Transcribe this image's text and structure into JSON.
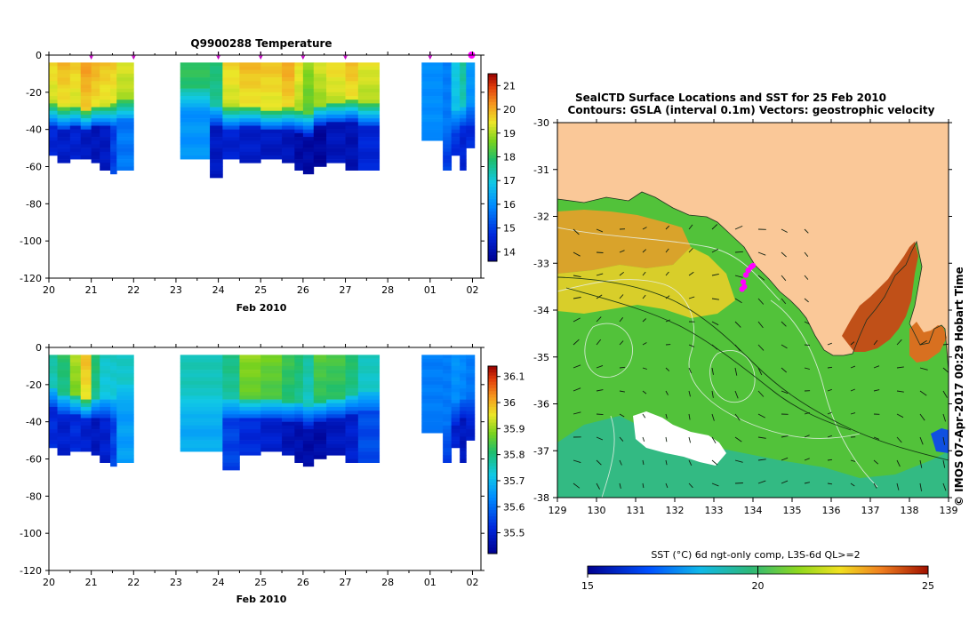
{
  "chart_data": [
    {
      "type": "heatmap",
      "id": "temperature_section",
      "title": "Q9900288  Temperature",
      "xlabel": "Feb 2010",
      "ylabel": "",
      "x_tick_labels": [
        "20",
        "21",
        "22",
        "23",
        "24",
        "25",
        "26",
        "27",
        "28",
        "01",
        "02"
      ],
      "ylim": [
        -120,
        0
      ],
      "y_ticks": [
        0,
        -20,
        -40,
        -60,
        -80,
        -100,
        -120
      ],
      "colorbar": {
        "min": 13.6,
        "max": 21.5,
        "ticks": [
          14,
          15,
          16,
          17,
          18,
          19,
          20,
          21
        ]
      },
      "profile_markers_day": [
        21.0,
        22.0,
        24.0,
        25.0,
        26.0,
        27.0,
        29.0,
        29.98
      ],
      "profiles": [
        {
          "x0": 20.0,
          "x1": 20.2,
          "surf": 19.7,
          "mix": 29,
          "deep": 14.6,
          "depth": 53
        },
        {
          "x0": 20.2,
          "x1": 20.5,
          "surf": 20.0,
          "mix": 31,
          "deep": 14.4,
          "depth": 57
        },
        {
          "x0": 20.5,
          "x1": 20.75,
          "surf": 19.8,
          "mix": 30,
          "deep": 14.5,
          "depth": 55
        },
        {
          "x0": 20.75,
          "x1": 21.0,
          "surf": 20.3,
          "mix": 32,
          "deep": 14.3,
          "depth": 55
        },
        {
          "x0": 21.0,
          "x1": 21.2,
          "surf": 20.1,
          "mix": 30,
          "deep": 14.2,
          "depth": 58
        },
        {
          "x0": 21.2,
          "x1": 21.45,
          "surf": 19.9,
          "mix": 30,
          "deep": 14.3,
          "depth": 61
        },
        {
          "x0": 21.45,
          "x1": 21.6,
          "surf": 19.8,
          "mix": 29,
          "deep": 15.0,
          "depth": 63
        },
        {
          "x0": 21.6,
          "x1": 22.0,
          "surf": 19.4,
          "mix": 26,
          "deep": 15.7,
          "depth": 61
        },
        {
          "x0": 23.1,
          "x1": 23.8,
          "surf": 18.1,
          "mix": 20,
          "deep": 16.1,
          "depth": 55
        },
        {
          "x0": 23.8,
          "x1": 24.1,
          "surf": 17.9,
          "mix": 30,
          "deep": 14.3,
          "depth": 66
        },
        {
          "x0": 24.1,
          "x1": 24.5,
          "surf": 19.7,
          "mix": 31,
          "deep": 14.5,
          "depth": 55
        },
        {
          "x0": 24.5,
          "x1": 25.0,
          "surf": 20.0,
          "mix": 30,
          "deep": 14.4,
          "depth": 57
        },
        {
          "x0": 25.0,
          "x1": 25.5,
          "surf": 19.9,
          "mix": 32,
          "deep": 14.3,
          "depth": 56
        },
        {
          "x0": 25.5,
          "x1": 25.8,
          "surf": 20.2,
          "mix": 31,
          "deep": 14.2,
          "depth": 58
        },
        {
          "x0": 25.8,
          "x1": 26.0,
          "surf": 19.6,
          "mix": 33,
          "deep": 13.9,
          "depth": 62
        },
        {
          "x0": 26.0,
          "x1": 26.25,
          "surf": 18.9,
          "mix": 35,
          "deep": 13.9,
          "depth": 64
        },
        {
          "x0": 26.25,
          "x1": 26.55,
          "surf": 19.4,
          "mix": 30,
          "deep": 13.8,
          "depth": 60
        },
        {
          "x0": 26.55,
          "x1": 27.0,
          "surf": 19.7,
          "mix": 28,
          "deep": 14.2,
          "depth": 58
        },
        {
          "x0": 27.0,
          "x1": 27.3,
          "surf": 20.0,
          "mix": 27,
          "deep": 14.1,
          "depth": 61
        },
        {
          "x0": 27.3,
          "x1": 27.8,
          "surf": 19.5,
          "mix": 29,
          "deep": 14.6,
          "depth": 61
        },
        {
          "x0": 28.8,
          "x1": 29.3,
          "surf": 16.0,
          "mix": 40,
          "deep": 15.8,
          "depth": 45
        },
        {
          "x0": 29.3,
          "x1": 29.5,
          "surf": 15.8,
          "mix": 44,
          "deep": 15.0,
          "depth": 62
        },
        {
          "x0": 29.5,
          "x1": 29.7,
          "surf": 17.0,
          "mix": 33,
          "deep": 14.8,
          "depth": 54
        },
        {
          "x0": 29.7,
          "x1": 29.85,
          "surf": 17.6,
          "mix": 30,
          "deep": 14.6,
          "depth": 62
        },
        {
          "x0": 29.85,
          "x1": 30.05,
          "surf": 16.2,
          "mix": 30,
          "deep": 14.7,
          "depth": 50
        }
      ]
    },
    {
      "type": "heatmap",
      "id": "salinity_section",
      "title": "",
      "xlabel": "Feb 2010",
      "ylabel": "",
      "x_tick_labels": [
        "20",
        "21",
        "22",
        "23",
        "24",
        "25",
        "26",
        "27",
        "28",
        "01",
        "02"
      ],
      "ylim": [
        -120,
        0
      ],
      "y_ticks": [
        0,
        -20,
        -40,
        -60,
        -80,
        -100,
        -120
      ],
      "colorbar": {
        "min": 35.42,
        "max": 36.14,
        "ticks": [
          35.5,
          35.6,
          35.7,
          35.8,
          35.9,
          36,
          36.1
        ]
      },
      "profiles": [
        {
          "x0": 20.0,
          "x1": 20.2,
          "surf": 35.78,
          "mix": 24,
          "deep": 35.52,
          "depth": 53
        },
        {
          "x0": 20.2,
          "x1": 20.5,
          "surf": 35.82,
          "mix": 28,
          "deep": 35.5,
          "depth": 57
        },
        {
          "x0": 20.5,
          "x1": 20.75,
          "surf": 35.92,
          "mix": 28,
          "deep": 35.52,
          "depth": 55
        },
        {
          "x0": 20.75,
          "x1": 21.0,
          "surf": 36.0,
          "mix": 30,
          "deep": 35.5,
          "depth": 55
        },
        {
          "x0": 21.0,
          "x1": 21.2,
          "surf": 35.82,
          "mix": 30,
          "deep": 35.48,
          "depth": 58
        },
        {
          "x0": 21.2,
          "x1": 21.45,
          "surf": 35.75,
          "mix": 30,
          "deep": 35.5,
          "depth": 61
        },
        {
          "x0": 21.45,
          "x1": 21.6,
          "surf": 35.75,
          "mix": 30,
          "deep": 35.55,
          "depth": 63
        },
        {
          "x0": 21.6,
          "x1": 22.0,
          "surf": 35.75,
          "mix": 22,
          "deep": 35.66,
          "depth": 61
        },
        {
          "x0": 23.1,
          "x1": 24.1,
          "surf": 35.76,
          "mix": 28,
          "deep": 35.68,
          "depth": 55
        },
        {
          "x0": 24.1,
          "x1": 24.5,
          "surf": 35.8,
          "mix": 30,
          "deep": 35.55,
          "depth": 66
        },
        {
          "x0": 24.5,
          "x1": 25.0,
          "surf": 35.9,
          "mix": 30,
          "deep": 35.52,
          "depth": 57
        },
        {
          "x0": 25.0,
          "x1": 25.5,
          "surf": 35.88,
          "mix": 30,
          "deep": 35.5,
          "depth": 56
        },
        {
          "x0": 25.5,
          "x1": 25.8,
          "surf": 35.84,
          "mix": 32,
          "deep": 35.47,
          "depth": 58
        },
        {
          "x0": 25.8,
          "x1": 26.0,
          "surf": 35.82,
          "mix": 32,
          "deep": 35.46,
          "depth": 62
        },
        {
          "x0": 26.0,
          "x1": 26.25,
          "surf": 35.78,
          "mix": 35,
          "deep": 35.45,
          "depth": 64
        },
        {
          "x0": 26.25,
          "x1": 26.55,
          "surf": 35.86,
          "mix": 32,
          "deep": 35.45,
          "depth": 60
        },
        {
          "x0": 26.55,
          "x1": 27.0,
          "surf": 35.85,
          "mix": 30,
          "deep": 35.48,
          "depth": 58
        },
        {
          "x0": 27.0,
          "x1": 27.3,
          "surf": 35.82,
          "mix": 28,
          "deep": 35.5,
          "depth": 61
        },
        {
          "x0": 27.3,
          "x1": 27.8,
          "surf": 35.76,
          "mix": 26,
          "deep": 35.56,
          "depth": 61
        },
        {
          "x0": 28.8,
          "x1": 29.3,
          "surf": 35.62,
          "mix": 40,
          "deep": 35.6,
          "depth": 45
        },
        {
          "x0": 29.3,
          "x1": 29.5,
          "surf": 35.62,
          "mix": 44,
          "deep": 35.55,
          "depth": 62
        },
        {
          "x0": 29.5,
          "x1": 29.7,
          "surf": 35.65,
          "mix": 33,
          "deep": 35.5,
          "depth": 54
        },
        {
          "x0": 29.7,
          "x1": 29.85,
          "surf": 35.64,
          "mix": 30,
          "deep": 35.48,
          "depth": 62
        },
        {
          "x0": 29.85,
          "x1": 30.05,
          "surf": 35.62,
          "mix": 30,
          "deep": 35.5,
          "depth": 50
        }
      ]
    },
    {
      "type": "heatmap",
      "id": "sst_map",
      "title": "SealCTD Surface Locations and SST for 25 Feb 2010",
      "subtitle": "Contours: GSLA (interval 0.1m) Vectors: geostrophic velocity",
      "side_label": "© IMOS 07-Apr-2017 00:29 Hobart Time",
      "xlabel": "",
      "ylabel": "",
      "xlim": [
        129,
        139
      ],
      "ylim": [
        -38,
        -30
      ],
      "x_tick_labels": [
        "129",
        "130",
        "131",
        "132",
        "133",
        "134",
        "135",
        "136",
        "137",
        "138",
        "139"
      ],
      "y_tick_labels": [
        "-30",
        "-31",
        "-32",
        "-33",
        "-34",
        "-35",
        "-36",
        "-37",
        "-38"
      ],
      "colorbar_label": "SST (°C) 6d ngt-only comp, L3S-6d QL>=2",
      "colorbar": {
        "min": 15,
        "max": 25,
        "ticks": [
          "15",
          "20",
          "25"
        ]
      },
      "track_points": [
        [
          133.72,
          -33.55
        ],
        [
          133.75,
          -33.4
        ],
        [
          133.82,
          -33.25
        ],
        [
          133.88,
          -33.15
        ],
        [
          133.95,
          -33.08
        ],
        [
          134.0,
          -33.05
        ],
        [
          133.78,
          -33.5
        ]
      ]
    }
  ]
}
